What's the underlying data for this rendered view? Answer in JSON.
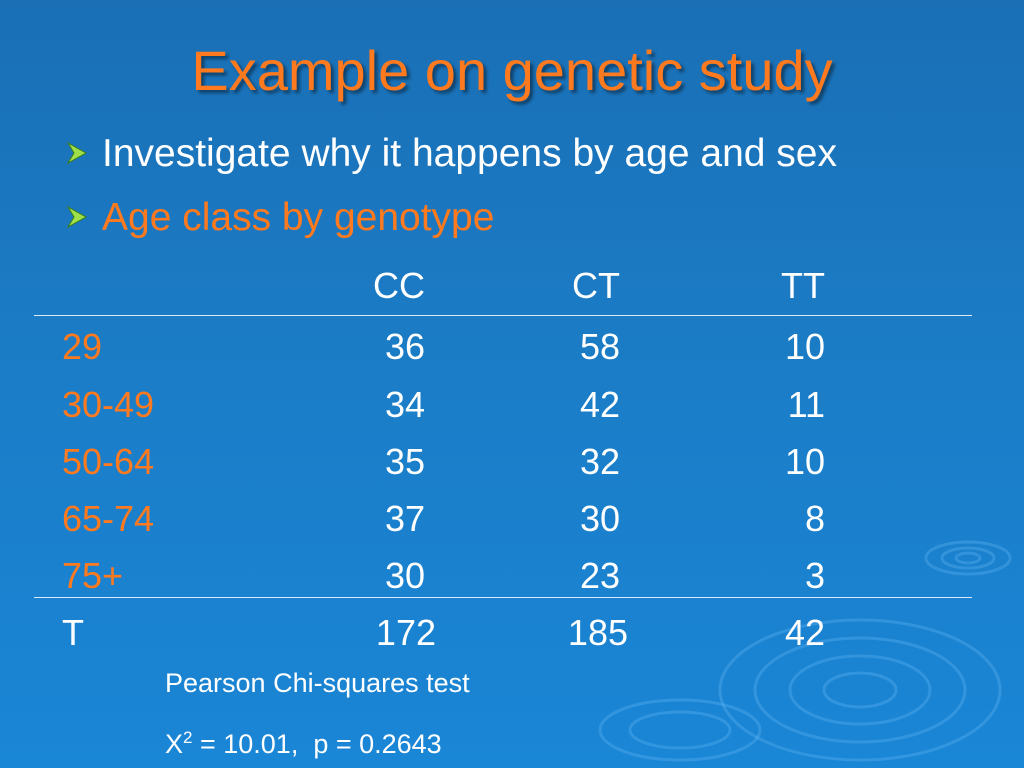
{
  "slide": {
    "title": "Example on genetic study",
    "bullets": [
      {
        "text": "Investigate why it happens by age and sex"
      },
      {
        "text": "Age class by genotype"
      }
    ]
  },
  "table": {
    "columns": [
      "CC",
      "CT",
      "TT"
    ],
    "rows": [
      {
        "label": "29",
        "values": [
          "36",
          "58",
          "10"
        ]
      },
      {
        "label": "30-49",
        "values": [
          "34",
          "42",
          "11"
        ]
      },
      {
        "label": "50-64",
        "values": [
          "35",
          "32",
          "10"
        ]
      },
      {
        "label": "65-74",
        "values": [
          "37",
          "30",
          "8"
        ]
      },
      {
        "label": "75+",
        "values": [
          "30",
          "23",
          "3"
        ]
      }
    ],
    "total": {
      "label": "T",
      "values": [
        "172",
        "185",
        "42"
      ]
    }
  },
  "note": {
    "line1": "Pearson Chi-squares test",
    "stat_symbol": "X",
    "stat_superscript": "2",
    "stat_rest": " = 10.01,  p = 0.2643"
  },
  "colors": {
    "background_top": "#1a6fb5",
    "background_bottom": "#1a86d6",
    "accent_orange": "#ff7a1e",
    "text_white": "#ffffff",
    "bullet_arrow_green": "#9fe04a"
  }
}
